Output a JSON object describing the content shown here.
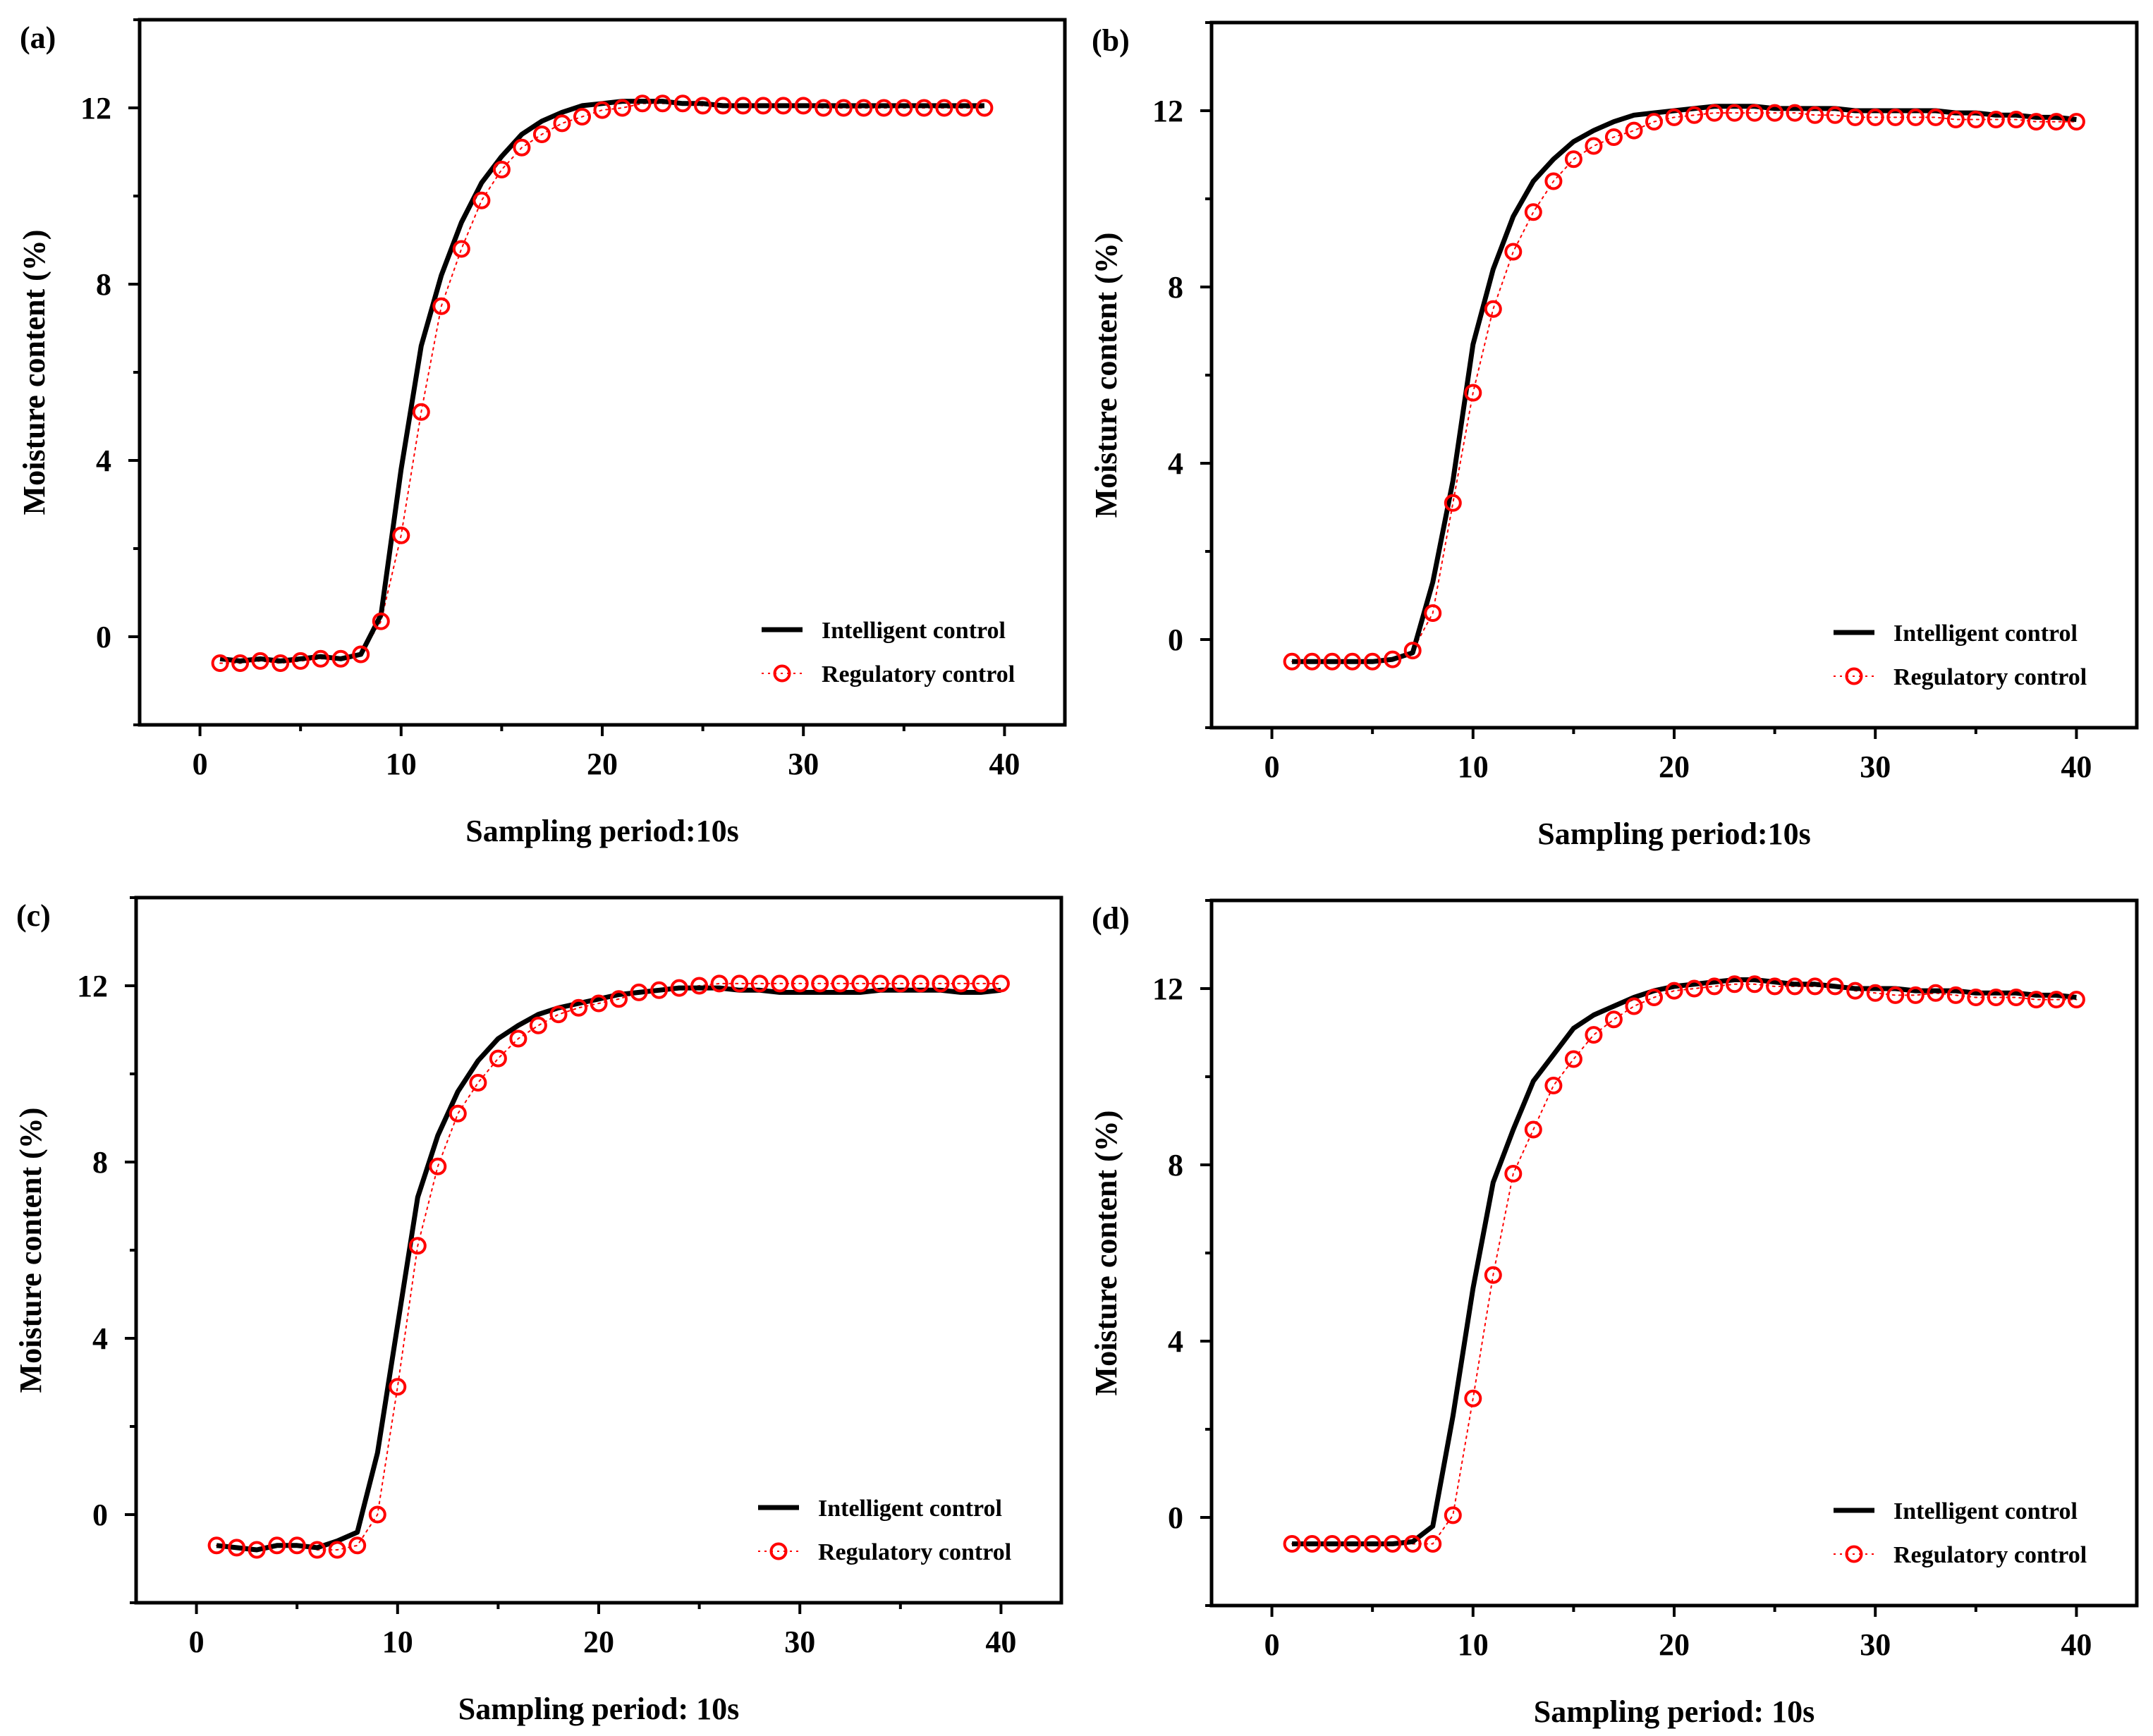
{
  "colors": {
    "intelligent": "#000000",
    "regulatory": "#ff0000",
    "axes": "#000000",
    "background": "#ffffff"
  },
  "chart_data": [
    {
      "panel": "(a)",
      "type": "line",
      "xlabel": "Sampling period:10s",
      "ylabel": "Moisture content (%)",
      "xlim": [
        -3,
        43
      ],
      "ylim": [
        -2,
        14
      ],
      "xticks": [
        0,
        10,
        20,
        30,
        40
      ],
      "yticks": [
        0,
        4,
        8,
        12
      ],
      "legend_position": "bottom-right",
      "series": [
        {
          "name": "Intelligent control",
          "style": "solid-line",
          "x": [
            1,
            2,
            3,
            4,
            5,
            6,
            7,
            8,
            9,
            10,
            11,
            12,
            13,
            14,
            15,
            16,
            17,
            18,
            19,
            20,
            21,
            22,
            23,
            24,
            25,
            26,
            27,
            28,
            29,
            30,
            31,
            32,
            33,
            34,
            35,
            36,
            37,
            38,
            39
          ],
          "y": [
            -0.5,
            -0.55,
            -0.5,
            -0.55,
            -0.5,
            -0.45,
            -0.5,
            -0.4,
            0.5,
            3.8,
            6.6,
            8.2,
            9.4,
            10.3,
            10.9,
            11.4,
            11.7,
            11.9,
            12.05,
            12.1,
            12.15,
            12.15,
            12.15,
            12.1,
            12.1,
            12.05,
            12.05,
            12.05,
            12.05,
            12.05,
            12.05,
            12.05,
            12.05,
            12.05,
            12.05,
            12.05,
            12.05,
            12.05,
            12.05
          ]
        },
        {
          "name": "Regulatory control",
          "style": "open-circles-dotted",
          "x": [
            1,
            2,
            3,
            4,
            5,
            6,
            7,
            8,
            9,
            10,
            11,
            12,
            13,
            14,
            15,
            16,
            17,
            18,
            19,
            20,
            21,
            22,
            23,
            24,
            25,
            26,
            27,
            28,
            29,
            30,
            31,
            32,
            33,
            34,
            35,
            36,
            37,
            38,
            39
          ],
          "y": [
            -0.6,
            -0.6,
            -0.55,
            -0.6,
            -0.55,
            -0.5,
            -0.5,
            -0.4,
            0.35,
            2.3,
            5.1,
            7.5,
            8.8,
            9.9,
            10.6,
            11.1,
            11.4,
            11.65,
            11.8,
            11.95,
            12.0,
            12.1,
            12.1,
            12.1,
            12.05,
            12.05,
            12.05,
            12.05,
            12.05,
            12.05,
            12.0,
            12.0,
            12.0,
            12.0,
            12.0,
            12.0,
            12.0,
            12.0,
            12.0
          ]
        }
      ]
    },
    {
      "panel": "(b)",
      "type": "line",
      "xlabel": "Sampling period:10s",
      "ylabel": "Moisture content (%)",
      "xlim": [
        -3,
        43
      ],
      "ylim": [
        -2,
        14
      ],
      "xticks": [
        0,
        10,
        20,
        30,
        40
      ],
      "yticks": [
        0,
        4,
        8,
        12
      ],
      "legend_position": "bottom-right",
      "series": [
        {
          "name": "Intelligent control",
          "style": "solid-line",
          "x": [
            1,
            2,
            3,
            4,
            5,
            6,
            7,
            8,
            9,
            10,
            11,
            12,
            13,
            14,
            15,
            16,
            17,
            18,
            19,
            20,
            21,
            22,
            23,
            24,
            25,
            26,
            27,
            28,
            29,
            30,
            31,
            32,
            33,
            34,
            35,
            36,
            37,
            38,
            39,
            40
          ],
          "y": [
            -0.5,
            -0.5,
            -0.5,
            -0.5,
            -0.5,
            -0.45,
            -0.3,
            1.3,
            3.6,
            6.7,
            8.4,
            9.6,
            10.4,
            10.9,
            11.3,
            11.55,
            11.75,
            11.9,
            11.95,
            12.0,
            12.05,
            12.1,
            12.1,
            12.1,
            12.05,
            12.05,
            12.05,
            12.05,
            12.0,
            12.0,
            12.0,
            12.0,
            12.0,
            11.95,
            11.95,
            11.9,
            11.9,
            11.85,
            11.85,
            11.8
          ]
        },
        {
          "name": "Regulatory control",
          "style": "open-circles-dotted",
          "x": [
            1,
            2,
            3,
            4,
            5,
            6,
            7,
            8,
            9,
            10,
            11,
            12,
            13,
            14,
            15,
            16,
            17,
            18,
            19,
            20,
            21,
            22,
            23,
            24,
            25,
            26,
            27,
            28,
            29,
            30,
            31,
            32,
            33,
            34,
            35,
            36,
            37,
            38,
            39,
            40
          ],
          "y": [
            -0.5,
            -0.5,
            -0.5,
            -0.5,
            -0.5,
            -0.45,
            -0.25,
            0.6,
            3.1,
            5.6,
            7.5,
            8.8,
            9.7,
            10.4,
            10.9,
            11.2,
            11.4,
            11.55,
            11.75,
            11.85,
            11.9,
            11.95,
            11.95,
            11.95,
            11.95,
            11.95,
            11.9,
            11.9,
            11.85,
            11.85,
            11.85,
            11.85,
            11.85,
            11.8,
            11.8,
            11.8,
            11.8,
            11.75,
            11.75,
            11.75
          ]
        }
      ]
    },
    {
      "panel": "(c)",
      "type": "line",
      "xlabel": "Sampling period: 10s",
      "ylabel": "Moisture content (%)",
      "xlim": [
        -3,
        43
      ],
      "ylim": [
        -2,
        14
      ],
      "xticks": [
        0,
        10,
        20,
        30,
        40
      ],
      "yticks": [
        0,
        4,
        8,
        12
      ],
      "legend_position": "bottom-right",
      "series": [
        {
          "name": "Intelligent control",
          "style": "solid-line",
          "x": [
            1,
            2,
            3,
            4,
            5,
            6,
            7,
            8,
            9,
            10,
            11,
            12,
            13,
            14,
            15,
            16,
            17,
            18,
            19,
            20,
            21,
            22,
            23,
            24,
            25,
            26,
            27,
            28,
            29,
            30,
            31,
            32,
            33,
            34,
            35,
            36,
            37,
            38,
            39,
            40
          ],
          "y": [
            -0.7,
            -0.75,
            -0.8,
            -0.7,
            -0.7,
            -0.75,
            -0.6,
            -0.4,
            1.4,
            4.3,
            7.2,
            8.6,
            9.6,
            10.3,
            10.8,
            11.1,
            11.35,
            11.5,
            11.6,
            11.7,
            11.8,
            11.85,
            11.9,
            11.95,
            11.95,
            11.95,
            11.9,
            11.9,
            11.85,
            11.85,
            11.85,
            11.85,
            11.85,
            11.9,
            11.9,
            11.9,
            11.9,
            11.85,
            11.85,
            11.9
          ]
        },
        {
          "name": "Regulatory control",
          "style": "open-circles-dotted",
          "x": [
            1,
            2,
            3,
            4,
            5,
            6,
            7,
            8,
            9,
            10,
            11,
            12,
            13,
            14,
            15,
            16,
            17,
            18,
            19,
            20,
            21,
            22,
            23,
            24,
            25,
            26,
            27,
            28,
            29,
            30,
            31,
            32,
            33,
            34,
            35,
            36,
            37,
            38,
            39,
            40
          ],
          "y": [
            -0.7,
            -0.75,
            -0.8,
            -0.7,
            -0.7,
            -0.8,
            -0.8,
            -0.7,
            0.0,
            2.9,
            6.1,
            7.9,
            9.1,
            9.8,
            10.35,
            10.8,
            11.1,
            11.35,
            11.5,
            11.6,
            11.7,
            11.85,
            11.9,
            11.95,
            12.0,
            12.05,
            12.05,
            12.05,
            12.05,
            12.05,
            12.05,
            12.05,
            12.05,
            12.05,
            12.05,
            12.05,
            12.05,
            12.05,
            12.05,
            12.05
          ]
        }
      ]
    },
    {
      "panel": "(d)",
      "type": "line",
      "xlabel": "Sampling period: 10s",
      "ylabel": "Moisture content (%)",
      "xlim": [
        -3,
        43
      ],
      "ylim": [
        -2,
        14
      ],
      "xticks": [
        0,
        10,
        20,
        30,
        40
      ],
      "yticks": [
        0,
        4,
        8,
        12
      ],
      "legend_position": "bottom-right",
      "series": [
        {
          "name": "Intelligent control",
          "style": "solid-line",
          "x": [
            1,
            2,
            3,
            4,
            5,
            6,
            7,
            8,
            9,
            10,
            11,
            12,
            13,
            14,
            15,
            16,
            17,
            18,
            19,
            20,
            21,
            22,
            23,
            24,
            25,
            26,
            27,
            28,
            29,
            30,
            31,
            32,
            33,
            34,
            35,
            36,
            37,
            38,
            39,
            40
          ],
          "y": [
            -0.6,
            -0.6,
            -0.6,
            -0.6,
            -0.6,
            -0.6,
            -0.55,
            -0.2,
            2.3,
            5.2,
            7.6,
            8.8,
            9.9,
            10.5,
            11.1,
            11.4,
            11.6,
            11.8,
            11.95,
            12.05,
            12.1,
            12.15,
            12.2,
            12.2,
            12.15,
            12.1,
            12.1,
            12.05,
            12.0,
            12.0,
            12.0,
            11.95,
            11.95,
            11.95,
            11.9,
            11.9,
            11.9,
            11.85,
            11.85,
            11.8
          ]
        },
        {
          "name": "Regulatory control",
          "style": "open-circles-dotted",
          "x": [
            1,
            2,
            3,
            4,
            5,
            6,
            7,
            8,
            9,
            10,
            11,
            12,
            13,
            14,
            15,
            16,
            17,
            18,
            19,
            20,
            21,
            22,
            23,
            24,
            25,
            26,
            27,
            28,
            29,
            30,
            31,
            32,
            33,
            34,
            35,
            36,
            37,
            38,
            39,
            40
          ],
          "y": [
            -0.6,
            -0.6,
            -0.6,
            -0.6,
            -0.6,
            -0.6,
            -0.6,
            -0.6,
            0.05,
            2.7,
            5.5,
            7.8,
            8.8,
            9.8,
            10.4,
            10.95,
            11.3,
            11.6,
            11.8,
            11.95,
            12.0,
            12.05,
            12.1,
            12.1,
            12.05,
            12.05,
            12.05,
            12.05,
            11.95,
            11.9,
            11.85,
            11.85,
            11.9,
            11.85,
            11.8,
            11.8,
            11.8,
            11.75,
            11.75,
            11.75
          ]
        }
      ]
    }
  ]
}
